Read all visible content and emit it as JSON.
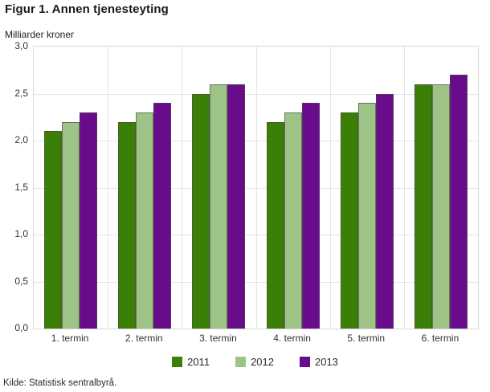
{
  "header": {
    "title": "Figur 1. Annen tjenesteyting"
  },
  "chart_data": {
    "type": "bar",
    "title": "Figur 1. Annen tjenesteyting",
    "unit_label": "Milliarder kroner",
    "categories": [
      "1. termin",
      "2. termin",
      "3. termin",
      "4. termin",
      "5. termin",
      "6. termin"
    ],
    "series": [
      {
        "name": "2011",
        "color": "#3c7f07",
        "values": [
          2.1,
          2.2,
          2.5,
          2.2,
          2.3,
          2.6
        ]
      },
      {
        "name": "2012",
        "color": "#9dc486",
        "values": [
          2.2,
          2.3,
          2.6,
          2.3,
          2.4,
          2.6
        ]
      },
      {
        "name": "2013",
        "color": "#690c8b",
        "values": [
          2.3,
          2.4,
          2.6,
          2.4,
          2.5,
          2.7
        ]
      }
    ],
    "ylim": [
      0,
      3.0
    ],
    "ytick_labels": [
      "3,0",
      "2,5",
      "2,0",
      "1,5",
      "1,0",
      "0,5",
      "0,0"
    ],
    "ytick_values": [
      3.0,
      2.5,
      2.0,
      1.5,
      1.0,
      0.5,
      0.0
    ],
    "grid": true,
    "legend_position": "bottom"
  },
  "footer": {
    "source": "Kilde: Statistisk sentralbyrå."
  }
}
